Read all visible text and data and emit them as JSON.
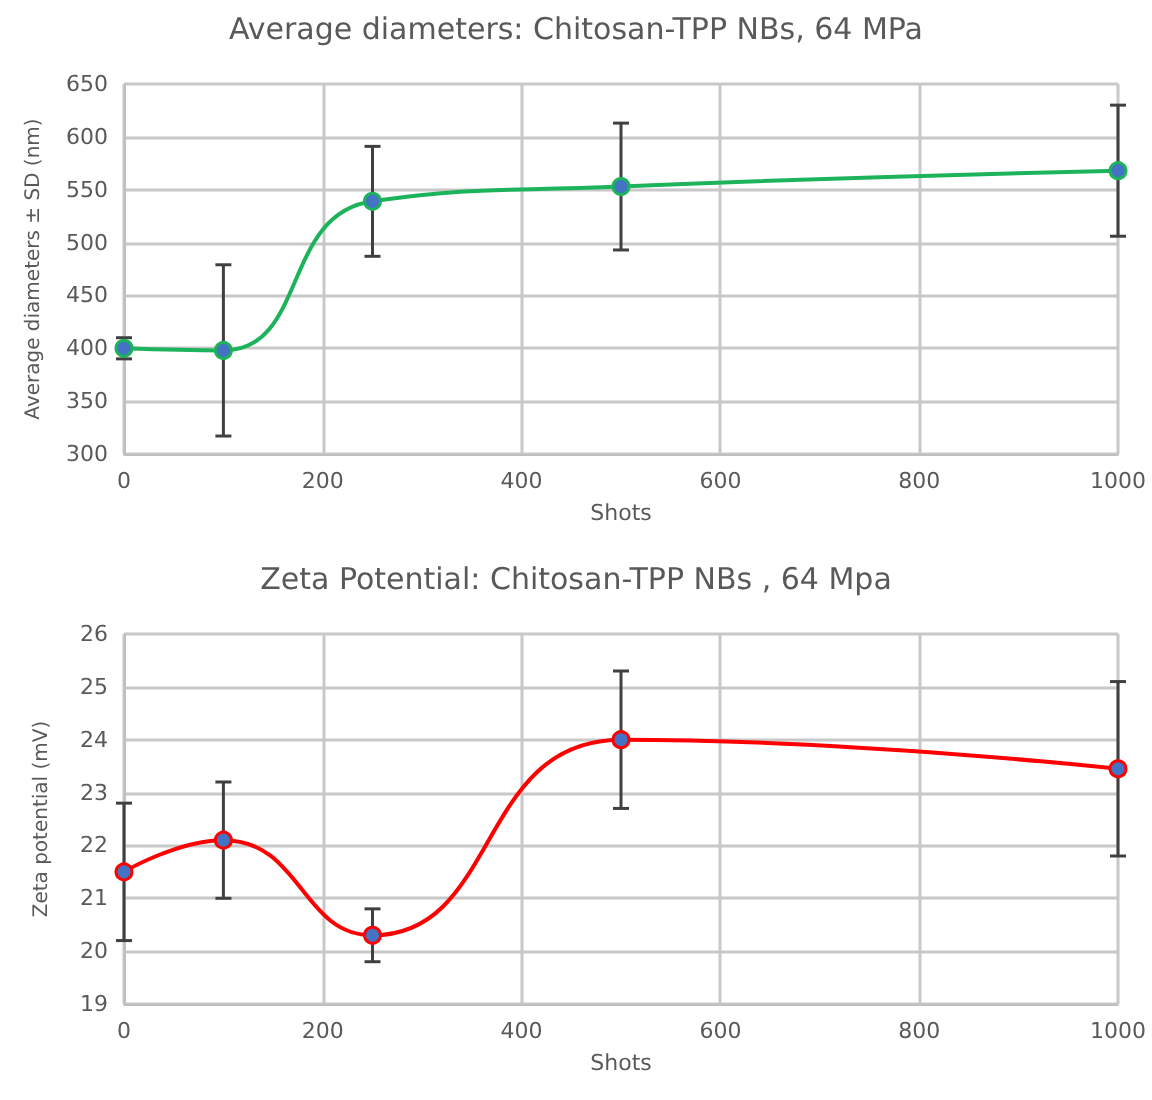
{
  "chart_data": [
    {
      "type": "line",
      "title": "Average diameters: Chitosan-TPP NBs, 64 MPa",
      "xlabel": "Shots",
      "ylabel": "Average diameters ± SD (nm)",
      "x": [
        0,
        100,
        250,
        500,
        1000
      ],
      "series": [
        {
          "color": "#1db35b",
          "values": [
            400,
            398,
            539,
            553,
            568
          ],
          "errors": [
            10,
            81,
            52,
            60,
            62
          ]
        }
      ],
      "xlim": [
        0,
        1000
      ],
      "xticks": [
        0,
        200,
        400,
        600,
        800,
        1000
      ],
      "ylim": [
        300,
        650
      ],
      "yticks": [
        300,
        350,
        400,
        450,
        500,
        550,
        600,
        650
      ],
      "grid": true,
      "marker": "circle",
      "line_style": "solid"
    },
    {
      "type": "line",
      "title": "Zeta Potential: Chitosan-TPP NBs , 64 Mpa",
      "xlabel": "Shots",
      "ylabel": "Zeta potential (mV)",
      "x": [
        0,
        100,
        250,
        500,
        1000
      ],
      "series": [
        {
          "color": "#ff0000",
          "values": [
            21.5,
            22.1,
            20.3,
            24.0,
            23.45
          ],
          "errors": [
            1.3,
            1.1,
            0.5,
            1.3,
            1.65
          ]
        }
      ],
      "xlim": [
        0,
        1000
      ],
      "xticks": [
        0,
        200,
        400,
        600,
        800,
        1000
      ],
      "ylim": [
        19,
        26
      ],
      "yticks": [
        19,
        20,
        21,
        22,
        23,
        24,
        25,
        26
      ],
      "grid": true,
      "marker": "circle",
      "line_style": "solid"
    }
  ]
}
